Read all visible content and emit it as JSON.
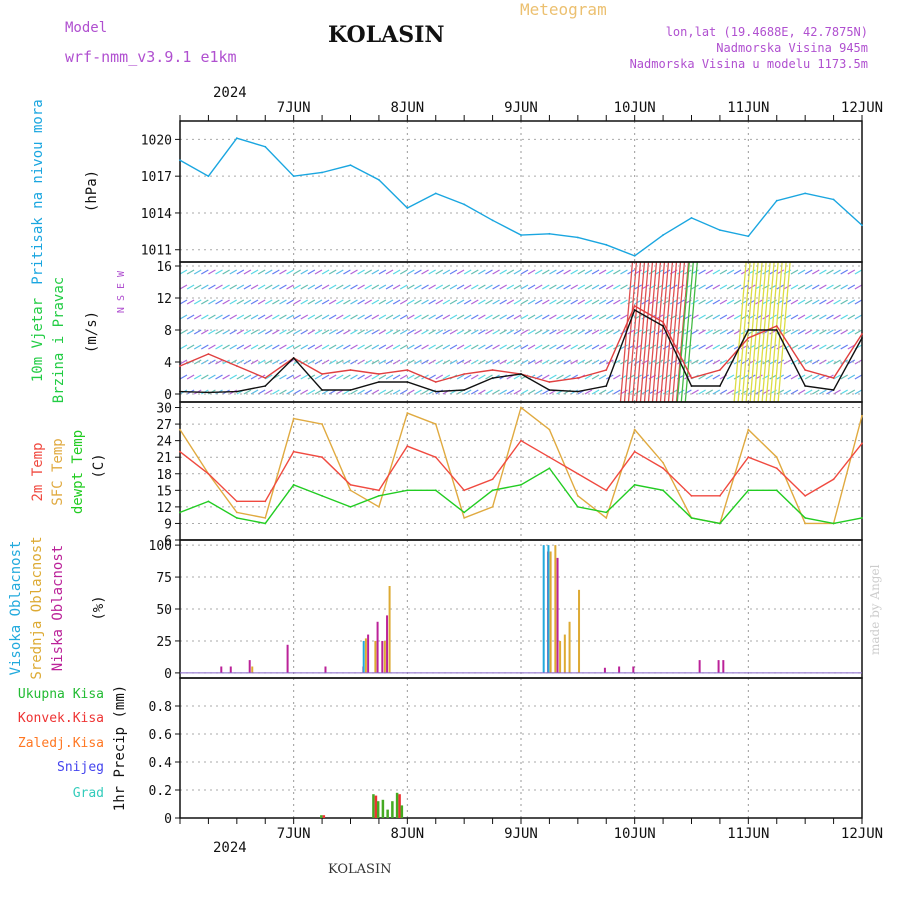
{
  "header": {
    "model_label": "Model",
    "model_name": "wrf-nmm_v3.9.1  e1km",
    "station": "KOLASIN",
    "product": "Meteogram",
    "lonlat": "lon,lat (19.4688E, 42.7875N)",
    "altitude": "Nadmorska Visina 945m",
    "model_altitude": "Nadmorska Visina u modelu 1173.5m",
    "year": "2024",
    "footer": "KOLASIN",
    "watermark": "made by Angel"
  },
  "colors": {
    "pressure": "#1aa6e0",
    "temp2m": "#f04a40",
    "sfc": "#e0aa40",
    "dewpt": "#22cc22",
    "high_cloud": "#22aadd",
    "mid_cloud": "#ddaa33",
    "low_cloud": "#bb2299",
    "total_precip": "#44aa22",
    "conv_precip": "#ee3333",
    "frz_precip": "#ff7722",
    "snow": "#4444ee",
    "hail": "#33ccbb"
  },
  "chart_data": [
    {
      "type": "line",
      "panel": "pressure",
      "ylabel": "Pritisak na nivou mora",
      "unit": "(hPa)",
      "ylim": [
        1010,
        1021.5
      ],
      "yticks": [
        1011,
        1014,
        1017,
        1020
      ],
      "grid": true,
      "x": [
        "06-06 12:00",
        "06-06 18:00",
        "06-07 00:00",
        "06-07 06:00",
        "06-07 12:00",
        "06-07 18:00",
        "06-08 00:00",
        "06-08 06:00",
        "06-08 12:00",
        "06-08 18:00",
        "06-09 00:00",
        "06-09 06:00",
        "06-09 12:00",
        "06-09 18:00",
        "06-10 00:00",
        "06-10 06:00",
        "06-10 12:00",
        "06-10 18:00",
        "06-11 00:00",
        "06-11 06:00",
        "06-11 12:00",
        "06-11 18:00",
        "06-12 00:00",
        "06-12 06:00",
        "06-12 12:00"
      ],
      "series": [
        {
          "values": [
            1018.3,
            1017.0,
            1020.1,
            1019.4,
            1017.0,
            1017.3,
            1017.9,
            1016.7,
            1014.4,
            1015.6,
            1014.7,
            1013.4,
            1012.2,
            1012.3,
            1012.0,
            1011.4,
            1010.5,
            1012.2,
            1013.6,
            1012.6,
            1012.1,
            1015.0,
            1015.6,
            1015.1,
            1013.0
          ]
        }
      ]
    },
    {
      "type": "line",
      "panel": "wind",
      "ylabel": "10m Vjetar",
      "ylabel2": "Brzina i Pravac",
      "unit": "(m/s)",
      "compass": "N S E W",
      "ylim": [
        -1,
        16.5
      ],
      "yticks": [
        0,
        4,
        8,
        12,
        16
      ],
      "grid": true,
      "x": [
        "06-06 12:00",
        "06-06 18:00",
        "06-07 00:00",
        "06-07 06:00",
        "06-07 12:00",
        "06-07 18:00",
        "06-08 00:00",
        "06-08 06:00",
        "06-08 12:00",
        "06-08 18:00",
        "06-09 00:00",
        "06-09 06:00",
        "06-09 12:00",
        "06-09 18:00",
        "06-10 00:00",
        "06-10 06:00",
        "06-10 12:00",
        "06-10 18:00",
        "06-11 00:00",
        "06-11 06:00",
        "06-11 12:00",
        "06-11 18:00",
        "06-12 00:00",
        "06-12 06:00",
        "06-12 12:00"
      ],
      "series": [
        {
          "values": [
            3.5,
            5.0,
            3.5,
            2.0,
            4.5,
            2.5,
            3.0,
            2.5,
            3.0,
            1.5,
            2.5,
            3.0,
            2.5,
            1.5,
            2.0,
            3.0,
            11.0,
            9.0,
            2.0,
            3.0,
            7.0,
            8.5,
            3.0,
            2.0,
            7.5
          ]
        },
        {
          "values": [
            0.3,
            0.2,
            0.3,
            1.0,
            4.5,
            0.5,
            0.5,
            1.5,
            1.5,
            0.3,
            0.5,
            2.0,
            2.5,
            0.5,
            0.3,
            1.0,
            10.5,
            8.5,
            1.0,
            1.0,
            8.0,
            8.0,
            1.0,
            0.5,
            7.0
          ]
        }
      ]
    },
    {
      "type": "line",
      "panel": "temperature",
      "ylabel": "2m Temp",
      "ylabel2": "SFC Temp",
      "ylabel3": "dewpt Temp",
      "unit": "(C)",
      "ylim": [
        6,
        31
      ],
      "yticks": [
        6,
        9,
        12,
        15,
        18,
        21,
        24,
        27,
        30
      ],
      "grid": true,
      "x": [
        "06-06 12:00",
        "06-06 18:00",
        "06-07 00:00",
        "06-07 06:00",
        "06-07 12:00",
        "06-07 18:00",
        "06-08 00:00",
        "06-08 06:00",
        "06-08 12:00",
        "06-08 18:00",
        "06-09 00:00",
        "06-09 06:00",
        "06-09 12:00",
        "06-09 18:00",
        "06-10 00:00",
        "06-10 06:00",
        "06-10 12:00",
        "06-10 18:00",
        "06-11 00:00",
        "06-11 06:00",
        "06-11 12:00",
        "06-11 18:00",
        "06-12 00:00",
        "06-12 06:00",
        "06-12 12:00"
      ],
      "series": [
        {
          "name": "2m Temp",
          "values": [
            22,
            18,
            13,
            13,
            22,
            21,
            16,
            15,
            23,
            21,
            15,
            17,
            24,
            21,
            18,
            15,
            22,
            19,
            14,
            14,
            21,
            19,
            14,
            17,
            23.5
          ]
        },
        {
          "name": "SFC Temp",
          "values": [
            26,
            18,
            11,
            10,
            28,
            27,
            15,
            12,
            29,
            27,
            10,
            12,
            30,
            26,
            14,
            10,
            26,
            20,
            10,
            9,
            26,
            21,
            9,
            9,
            28.5
          ]
        },
        {
          "name": "dewpt Temp",
          "values": [
            11,
            13,
            10,
            9,
            16,
            14,
            12,
            14,
            15,
            15,
            11,
            15,
            16,
            19,
            12,
            11,
            16,
            15,
            10,
            9,
            15,
            15,
            10,
            9,
            10
          ]
        }
      ]
    },
    {
      "type": "bar",
      "panel": "cloud",
      "ylabel": "Visoka Oblacnost",
      "ylabel2": "Srednja Oblacnost",
      "ylabel3": "Niska Oblacnost",
      "unit": "(%)",
      "ylim": [
        -4,
        104
      ],
      "yticks": [
        0,
        25,
        50,
        75,
        100
      ],
      "grid": true,
      "x": [
        "06-06 20:00",
        "06-06 22:00",
        "06-07 02:00",
        "06-07 03:00",
        "06-07 10:00",
        "06-07 18:00",
        "06-08 02:00",
        "06-08 03:00",
        "06-08 05:00",
        "06-08 06:00",
        "06-08 07:00",
        "06-08 08:00",
        "06-09 17:00",
        "06-09 18:00",
        "06-09 19:00",
        "06-09 20:00",
        "06-09 21:00",
        "06-09 22:00",
        "06-09 23:00",
        "06-10 00:00",
        "06-10 05:00",
        "06-10 08:00",
        "06-10 11:00",
        "06-11 01:00",
        "06-11 05:00",
        "06-11 06:00"
      ],
      "series": [
        {
          "name": "Visoka Oblacnost",
          "values": [
            0,
            0,
            0,
            0,
            0,
            0,
            0,
            25,
            0,
            0,
            0,
            0,
            100,
            100,
            0,
            0,
            0,
            0,
            0,
            0,
            0,
            0,
            0,
            0,
            0,
            0
          ]
        },
        {
          "name": "Srednja Oblacnost",
          "values": [
            0,
            0,
            0,
            5,
            0,
            0,
            0,
            27,
            25,
            0,
            25,
            68,
            0,
            95,
            100,
            25,
            30,
            40,
            0,
            65,
            0,
            0,
            0,
            0,
            0,
            0
          ]
        },
        {
          "name": "Niska Oblacnost",
          "values": [
            5,
            5,
            10,
            0,
            22,
            5,
            5,
            30,
            40,
            25,
            45,
            0,
            95,
            0,
            90,
            0,
            0,
            0,
            0,
            0,
            4,
            5,
            5,
            10,
            10,
            10
          ]
        }
      ]
    },
    {
      "type": "bar",
      "panel": "precipitation",
      "ylabel": "1hr Precip (mm)",
      "legend": [
        "Ukupna Kisa",
        "Konvek.Kisa",
        "Zaledj.Kisa",
        "Snijeg",
        "Grad"
      ],
      "ylim": [
        0,
        1.0
      ],
      "yticks": [
        0,
        0.2,
        0.4,
        0.6,
        0.8
      ],
      "grid": true,
      "x": [
        "06-07 18:00",
        "06-08 05:00",
        "06-08 06:00",
        "06-08 07:00",
        "06-08 08:00",
        "06-08 09:00",
        "06-08 10:00",
        "06-08 11:00"
      ],
      "series": [
        {
          "name": "Ukupna Kisa",
          "values": [
            0.02,
            0.17,
            0.12,
            0.13,
            0.06,
            0.12,
            0.18,
            0.09
          ]
        },
        {
          "name": "Konvek.Kisa",
          "values": [
            0.02,
            0.16,
            0.0,
            0.0,
            0.0,
            0.0,
            0.17,
            0.0
          ]
        }
      ]
    }
  ],
  "axis": {
    "dates": [
      "7JUN",
      "8JUN",
      "9JUN",
      "10JUN",
      "11JUN",
      "12JUN"
    ],
    "start": "06-06 12:00",
    "end": "06-12 12:00"
  }
}
